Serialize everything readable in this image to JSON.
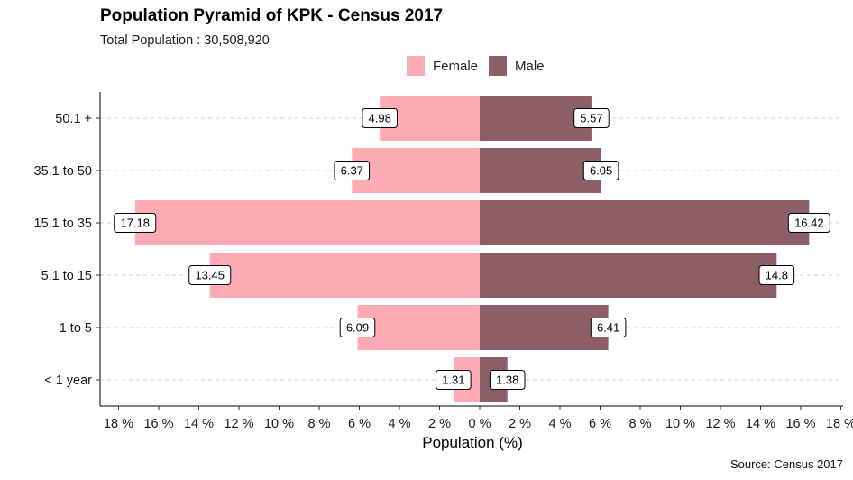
{
  "chart_data": {
    "type": "bar",
    "orientation": "horizontal",
    "title": "Population Pyramid of KPK - Census 2017",
    "subtitle": "Total Population : 30,508,920",
    "caption": "Source: Census 2017",
    "xlabel": "Population (%)",
    "ylabel": "",
    "categories": [
      "< 1 year",
      "1 to 5",
      "5.1 to 15",
      "15.1 to 35",
      "35.1 to 50",
      "50.1 +"
    ],
    "series": [
      {
        "name": "Female",
        "color": "#FFABB6",
        "direction": "left",
        "values": [
          1.31,
          6.09,
          13.45,
          17.18,
          6.37,
          4.98
        ]
      },
      {
        "name": "Male",
        "color": "#8C5F66",
        "direction": "right",
        "values": [
          1.38,
          6.41,
          14.8,
          16.42,
          6.05,
          5.57
        ]
      }
    ],
    "data_labels": {
      "Female": [
        "1.31",
        "6.09",
        "13.45",
        "17.18",
        "6.37",
        "4.98"
      ],
      "Male": [
        "1.38",
        "6.41",
        "14.8",
        "16.42",
        "6.05",
        "5.57"
      ]
    },
    "xlim": [
      -18.5,
      18.5
    ],
    "x_ticks": [
      -18,
      -16,
      -14,
      -12,
      -10,
      -8,
      -6,
      -4,
      -2,
      0,
      2,
      4,
      6,
      8,
      10,
      12,
      14,
      16,
      18
    ],
    "x_tick_labels": [
      "18 %",
      "16 %",
      "14 %",
      "12 %",
      "10 %",
      "8 %",
      "6 %",
      "4 %",
      "2 %",
      "0 %",
      "2 %",
      "4 %",
      "6 %",
      "8 %",
      "10 %",
      "12 %",
      "14 %",
      "16 %",
      "18 %"
    ],
    "grid": "horizontal dashed",
    "legend_position": "top"
  }
}
